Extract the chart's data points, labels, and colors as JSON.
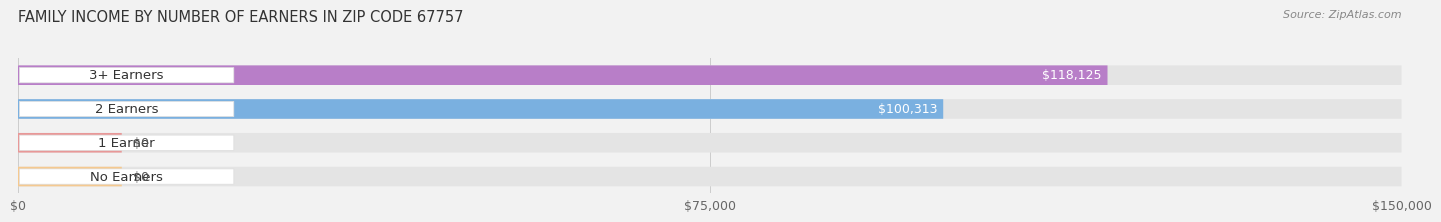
{
  "title": "FAMILY INCOME BY NUMBER OF EARNERS IN ZIP CODE 67757",
  "source": "Source: ZipAtlas.com",
  "categories": [
    "No Earners",
    "1 Earner",
    "2 Earners",
    "3+ Earners"
  ],
  "values": [
    0,
    0,
    100313,
    118125
  ],
  "bar_colors": [
    "#f5c990",
    "#e89898",
    "#7ab0e0",
    "#b87ec8"
  ],
  "value_labels": [
    "$0",
    "$0",
    "$100,313",
    "$118,125"
  ],
  "xlim": [
    0,
    150000
  ],
  "xticks": [
    0,
    75000,
    150000
  ],
  "xtick_labels": [
    "$0",
    "$75,000",
    "$150,000"
  ],
  "background_color": "#f2f2f2",
  "bar_background": "#e4e4e4",
  "title_fontsize": 10.5,
  "source_fontsize": 8,
  "label_fontsize": 9.5,
  "value_fontsize": 9,
  "tick_fontsize": 9
}
